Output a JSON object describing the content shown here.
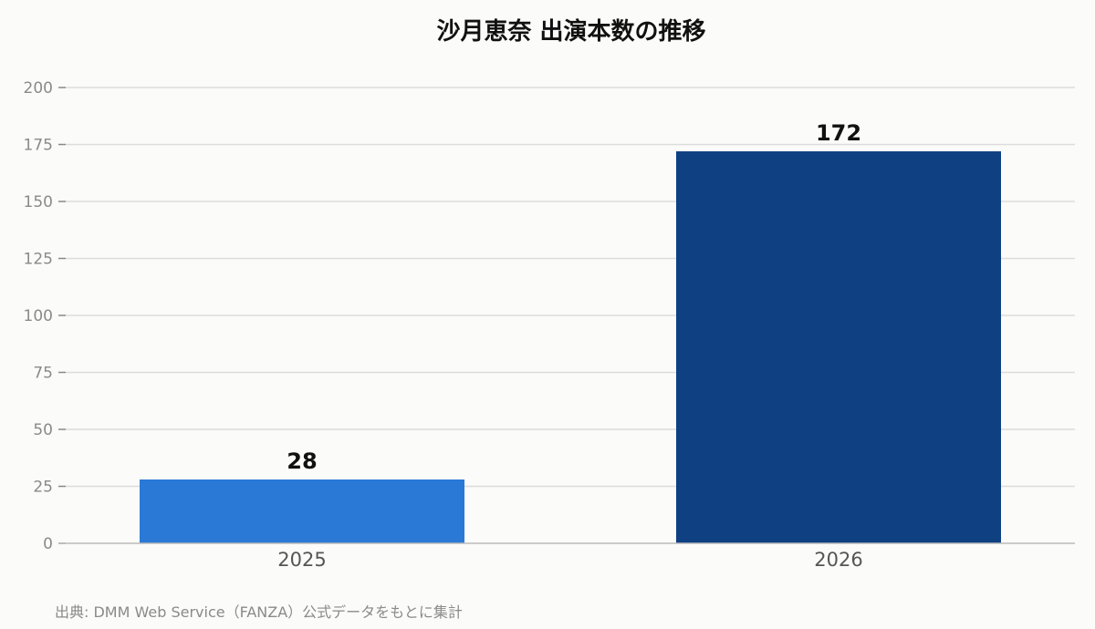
{
  "chart_data": {
    "type": "bar",
    "title": "沙月恵奈 出演本数の推移",
    "categories": [
      "2025",
      "2026"
    ],
    "values": [
      28,
      172
    ],
    "colors": [
      "#2b79d6",
      "#0f4082"
    ],
    "ylim": [
      0,
      200
    ],
    "yticks": [
      0,
      25,
      50,
      75,
      100,
      125,
      150,
      175,
      200
    ],
    "xlabel": "",
    "ylabel": "",
    "grid": true,
    "legend": "none",
    "data_labels": true
  },
  "source": "出典: DMM Web Service（FANZA）公式データをもとに集計"
}
